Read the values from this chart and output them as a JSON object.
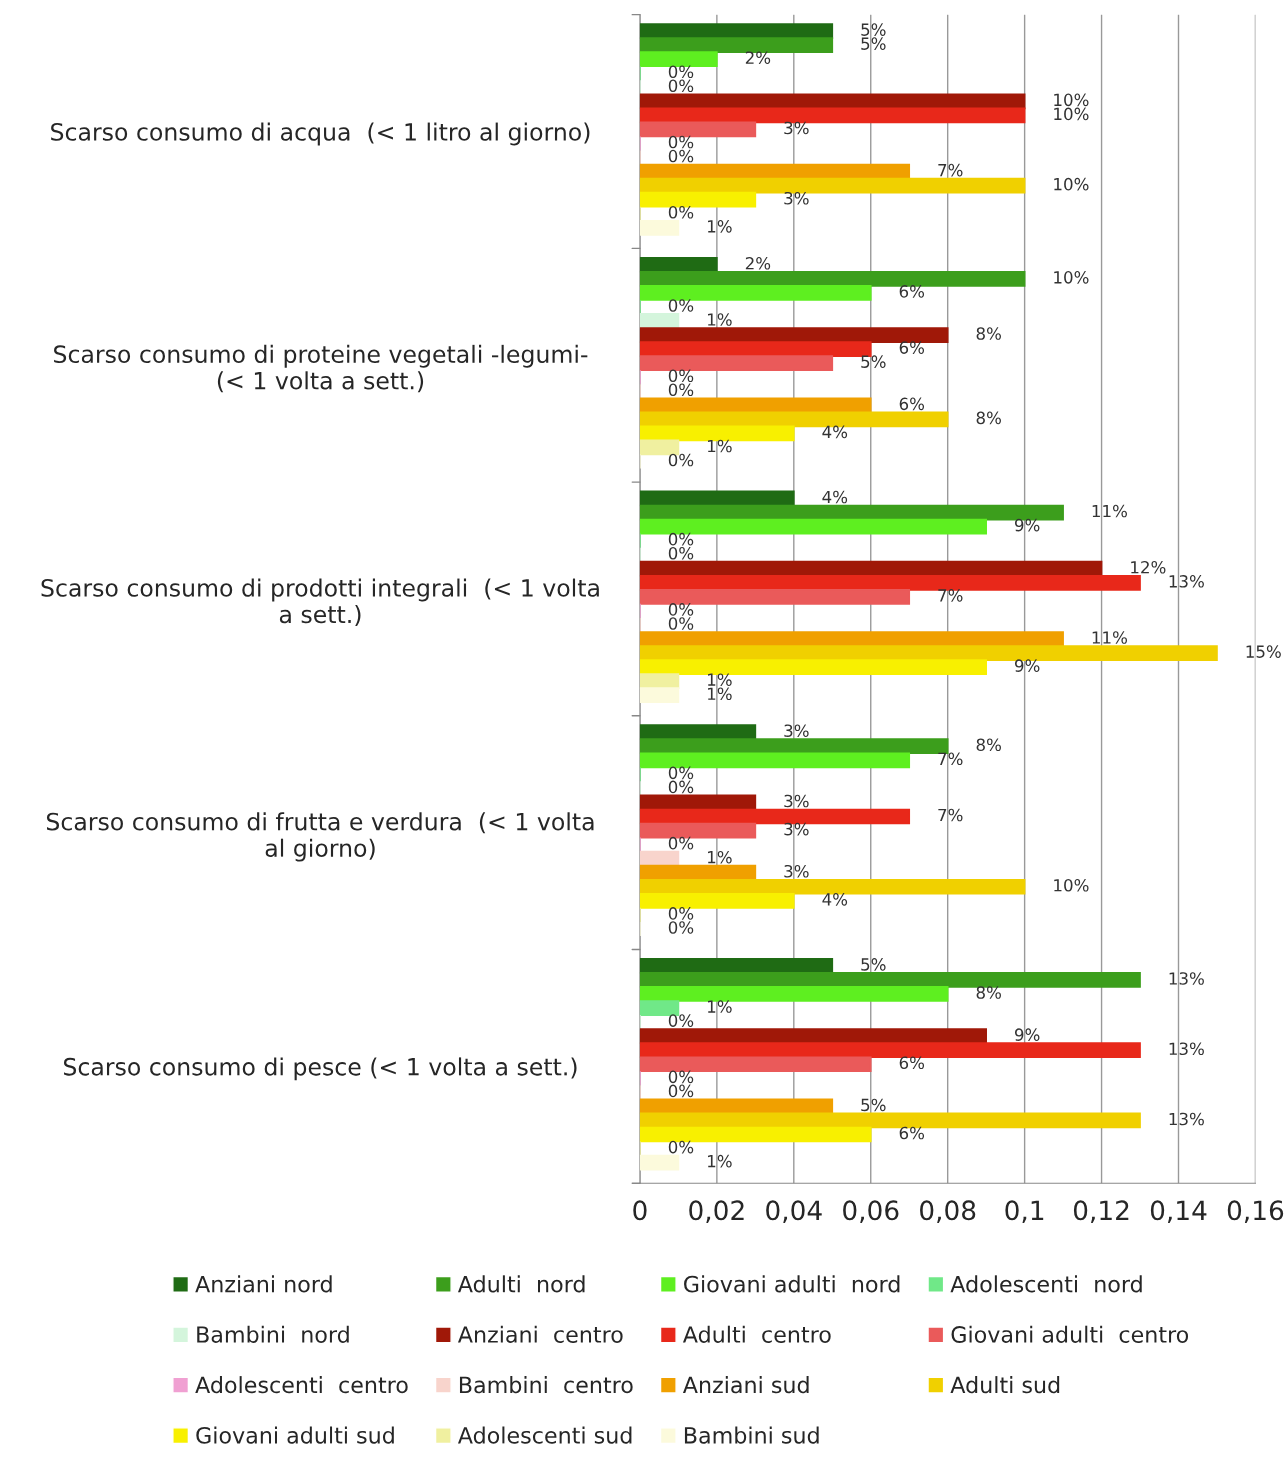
{
  "chart_data": {
    "type": "bar",
    "orientation": "horizontal",
    "categories": [
      "Scarso consumo di acqua  (< 1 litro al giorno)",
      "Scarso consumo di proteine vegetali -legumi-\n(< 1 volta a sett.)",
      "Scarso consumo di prodotti integrali  (< 1 volta\na sett.)",
      "Scarso consumo di frutta e verdura  (< 1 volta\nal giorno)",
      "Scarso consumo di pesce (< 1 volta a sett.)"
    ],
    "xlim": [
      0,
      0.16
    ],
    "xticks": [
      0,
      {
        "value": 0.02,
        "label": "0,02"
      },
      {
        "value": 0.04,
        "label": "0,04"
      },
      {
        "value": 0.06,
        "label": "0,06"
      },
      {
        "value": 0.08,
        "label": "0,08"
      },
      {
        "value": 0.1,
        "label": "0,1"
      },
      {
        "value": 0.12,
        "label": "0,12"
      },
      {
        "value": 0.14,
        "label": "0,14"
      },
      {
        "value": 0.16,
        "label": "0,16"
      }
    ],
    "grid": "x",
    "legend": "bottom",
    "series": [
      {
        "name": "Anziani nord",
        "color": "#1f6b14",
        "values": [
          0.05,
          0.02,
          0.04,
          0.03,
          0.05
        ],
        "value_labels": [
          "5%",
          "2%",
          "4%",
          "3%",
          "5%"
        ]
      },
      {
        "name": "Adulti  nord",
        "color": "#3c9e1c",
        "values": [
          0.05,
          0.1,
          0.11,
          0.08,
          0.13
        ],
        "value_labels": [
          "5%",
          "10%",
          "11%",
          "8%",
          "13%"
        ]
      },
      {
        "name": "Giovani adulti  nord",
        "color": "#5eef20",
        "values": [
          0.02,
          0.06,
          0.09,
          0.07,
          0.08
        ],
        "value_labels": [
          "2%",
          "6%",
          "9%",
          "7%",
          "8%"
        ]
      },
      {
        "name": "Adolescenti  nord",
        "color": "#70e888",
        "values": [
          0,
          0,
          0,
          0,
          0.01
        ],
        "value_labels": [
          "0%",
          "0%",
          "0%",
          "0%",
          "1%"
        ]
      },
      {
        "name": "Bambini  nord",
        "color": "#d4f5dc",
        "values": [
          0,
          0.01,
          0,
          0,
          0
        ],
        "value_labels": [
          "0%",
          "1%",
          "0%",
          "0%",
          "0%"
        ]
      },
      {
        "name": "Anziani  centro",
        "color": "#a01808",
        "values": [
          0.1,
          0.08,
          0.12,
          0.03,
          0.09
        ],
        "value_labels": [
          "10%",
          "8%",
          "12%",
          "3%",
          "9%"
        ]
      },
      {
        "name": "Adulti  centro",
        "color": "#e8281a",
        "values": [
          0.1,
          0.06,
          0.13,
          0.07,
          0.13
        ],
        "value_labels": [
          "10%",
          "6%",
          "13%",
          "7%",
          "13%"
        ]
      },
      {
        "name": "Giovani adulti  centro",
        "color": "#ea5a5a",
        "values": [
          0.03,
          0.05,
          0.07,
          0.03,
          0.06
        ],
        "value_labels": [
          "3%",
          "5%",
          "7%",
          "3%",
          "6%"
        ]
      },
      {
        "name": "Adolescenti  centro",
        "color": "#f0a0d2",
        "values": [
          0,
          0,
          0,
          0,
          0
        ],
        "value_labels": [
          "0%",
          "0%",
          "0%",
          "0%",
          "0%"
        ]
      },
      {
        "name": "Bambini  centro",
        "color": "#f8d4cc",
        "values": [
          0,
          0,
          0,
          0.01,
          0
        ],
        "value_labels": [
          "0%",
          "0%",
          "0%",
          "1%",
          "0%"
        ]
      },
      {
        "name": "Anziani sud",
        "color": "#f0a000",
        "values": [
          0.07,
          0.06,
          0.11,
          0.03,
          0.05
        ],
        "value_labels": [
          "7%",
          "6%",
          "11%",
          "3%",
          "5%"
        ]
      },
      {
        "name": "Adulti sud",
        "color": "#f0d000",
        "values": [
          0.1,
          0.08,
          0.15,
          0.1,
          0.13
        ],
        "value_labels": [
          "10%",
          "8%",
          "15%",
          "10%",
          "13%"
        ]
      },
      {
        "name": "Giovani adulti sud",
        "color": "#f8f000",
        "values": [
          0.03,
          0.04,
          0.09,
          0.04,
          0.06
        ],
        "value_labels": [
          "3%",
          "4%",
          "9%",
          "4%",
          "6%"
        ]
      },
      {
        "name": "Adolescenti sud",
        "color": "#f0f0a0",
        "values": [
          0,
          0.01,
          0.01,
          0,
          0
        ],
        "value_labels": [
          "0%",
          "1%",
          "1%",
          "0%",
          "0%"
        ]
      },
      {
        "name": "Bambini sud",
        "color": "#fcfadc",
        "values": [
          0.01,
          0,
          0.01,
          0,
          0.01
        ],
        "value_labels": [
          "1%",
          "0%",
          "1%",
          "0%",
          "1%"
        ]
      }
    ]
  }
}
